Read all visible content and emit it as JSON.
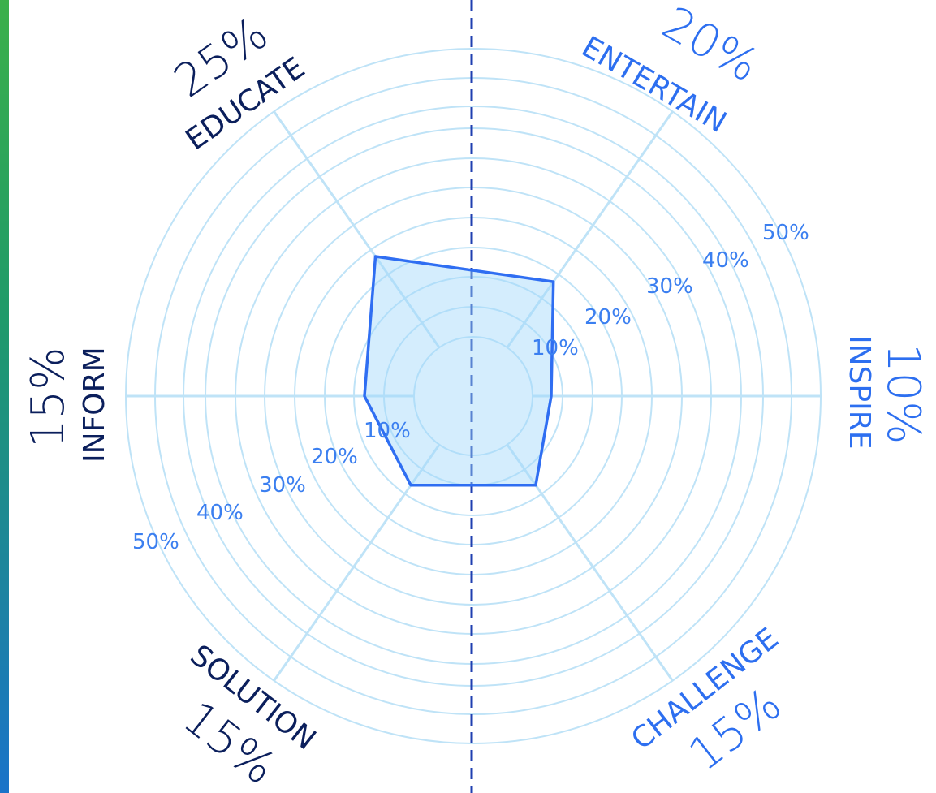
{
  "chart_data": {
    "type": "radar",
    "axes": [
      {
        "label": "EDUCATE",
        "percent_label": "25%",
        "value": 25,
        "color": "#0b1f5c"
      },
      {
        "label": "ENTERTAIN",
        "percent_label": "20%",
        "value": 20,
        "color": "#2d6ff0"
      },
      {
        "label": "INSPIRE",
        "percent_label": "10%",
        "value": 10,
        "color": "#2d6ff0"
      },
      {
        "label": "CHALLENGE",
        "percent_label": "15%",
        "value": 15,
        "color": "#2d6ff0"
      },
      {
        "label": "SOLUTION",
        "percent_label": "15%",
        "value": 15,
        "color": "#0b1f5c"
      },
      {
        "label": "INFORM",
        "percent_label": "15%",
        "value": 15,
        "color": "#0b1f5c"
      }
    ],
    "radial_ticks_right": [
      "10%",
      "20%",
      "30%",
      "40%",
      "50%"
    ],
    "radial_ticks_left": [
      "10%",
      "20%",
      "30%",
      "40%",
      "50%"
    ],
    "r_max": 50,
    "grid": true,
    "colors": {
      "grid": "#bfe3f7",
      "series_stroke": "#2f6ef2",
      "series_fill": "#a0d7fa",
      "divider": "#1f3fb0",
      "left_strip_top": "#3bb04a",
      "left_strip_bottom": "#1a73c9"
    }
  }
}
